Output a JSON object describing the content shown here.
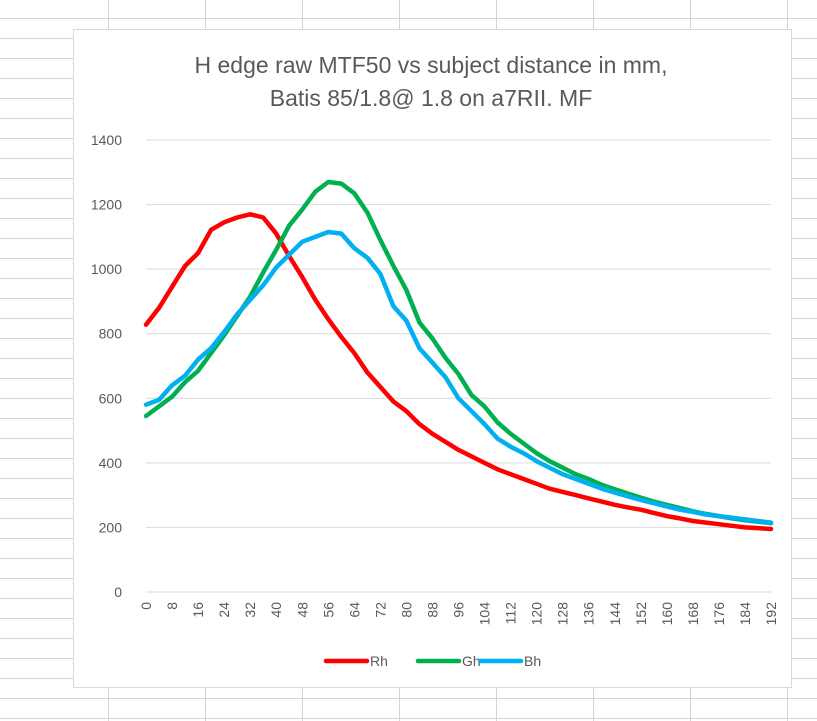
{
  "chart_data": {
    "type": "line",
    "title": "H edge raw MTF50 vs subject distance in mm,",
    "subtitle": "Batis 85/1.8@ 1.8 on a7RII. MF",
    "xlabel": "",
    "ylabel": "",
    "ylim": [
      0,
      1400
    ],
    "yticks": [
      0,
      200,
      400,
      600,
      800,
      1000,
      1200,
      1400
    ],
    "x": [
      0,
      4,
      8,
      12,
      16,
      20,
      24,
      28,
      32,
      36,
      40,
      44,
      48,
      52,
      56,
      60,
      64,
      68,
      72,
      76,
      80,
      84,
      88,
      92,
      96,
      100,
      104,
      108,
      112,
      116,
      120,
      124,
      128,
      132,
      136,
      140,
      144,
      148,
      152,
      156,
      160,
      164,
      168,
      172,
      176,
      180,
      184,
      188,
      192
    ],
    "xtick_labels": [
      "0",
      "8",
      "16",
      "24",
      "32",
      "40",
      "48",
      "56",
      "64",
      "72",
      "80",
      "88",
      "96",
      "104",
      "112",
      "120",
      "128",
      "136",
      "144",
      "152",
      "160",
      "168",
      "176",
      "184",
      "192"
    ],
    "grid": true,
    "legend_position": "bottom",
    "series": [
      {
        "name": "Rh",
        "color": "#ff0000",
        "values": [
          828,
          880,
          945,
          1010,
          1050,
          1122,
          1145,
          1160,
          1170,
          1160,
          1110,
          1040,
          975,
          905,
          845,
          790,
          740,
          680,
          635,
          590,
          560,
          520,
          490,
          465,
          440,
          420,
          400,
          380,
          365,
          350,
          335,
          320,
          310,
          300,
          290,
          280,
          270,
          262,
          255,
          245,
          235,
          228,
          220,
          215,
          210,
          205,
          200,
          198,
          195
        ]
      },
      {
        "name": "Gh",
        "color": "#00b050",
        "values": [
          545,
          575,
          605,
          650,
          685,
          740,
          795,
          855,
          915,
          990,
          1060,
          1135,
          1185,
          1240,
          1270,
          1265,
          1235,
          1175,
          1090,
          1010,
          935,
          835,
          785,
          725,
          675,
          610,
          575,
          525,
          490,
          460,
          430,
          405,
          385,
          365,
          350,
          332,
          318,
          305,
          292,
          280,
          270,
          260,
          250,
          242,
          235,
          228,
          222,
          218,
          213
        ]
      },
      {
        "name": "Bh",
        "color": "#00b0f0",
        "values": [
          580,
          595,
          640,
          670,
          720,
          755,
          805,
          860,
          905,
          950,
          1005,
          1045,
          1085,
          1100,
          1115,
          1110,
          1065,
          1035,
          985,
          885,
          840,
          755,
          710,
          665,
          600,
          560,
          520,
          475,
          450,
          430,
          405,
          385,
          365,
          350,
          335,
          320,
          308,
          296,
          285,
          275,
          265,
          255,
          248,
          240,
          235,
          230,
          225,
          220,
          215
        ]
      }
    ]
  }
}
